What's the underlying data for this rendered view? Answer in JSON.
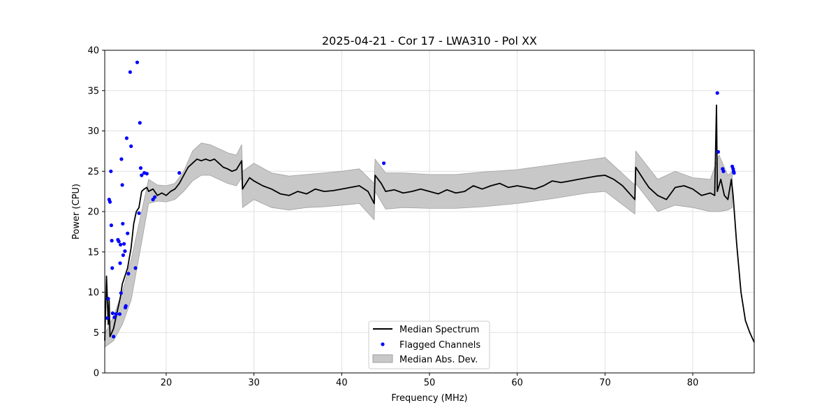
{
  "chart_data": {
    "type": "line",
    "title": "2025-04-21 - Cor 17 - LWA310 - Pol XX",
    "xlabel": "Frequency (MHz)",
    "ylabel": "Power (CPU)",
    "xlim": [
      13,
      87
    ],
    "ylim": [
      0,
      40
    ],
    "xticks": [
      20,
      30,
      40,
      50,
      60,
      70,
      80
    ],
    "yticks": [
      0,
      5,
      10,
      15,
      20,
      25,
      30,
      35,
      40
    ],
    "grid": true,
    "legend_position": "bottom-center",
    "legend": [
      "Median Spectrum",
      "Flagged Channels",
      "Median Abs. Dev."
    ],
    "colors": {
      "median": "#000000",
      "flagged": "#0000ff",
      "mad_fill": "#c8c8c8",
      "mad_edge": "#a0a0a0",
      "grid": "#e0e0e0"
    },
    "series": [
      {
        "name": "Median Spectrum",
        "x": [
          13.0,
          13.2,
          13.4,
          13.5,
          13.6,
          13.8,
          14.0,
          14.2,
          14.5,
          14.8,
          15.0,
          15.3,
          15.6,
          16.0,
          16.3,
          16.6,
          16.9,
          17.2,
          17.5,
          17.8,
          18.0,
          18.5,
          19.0,
          19.5,
          20.0,
          20.5,
          21.0,
          21.5,
          22.0,
          22.5,
          23.0,
          23.5,
          24.0,
          24.5,
          25.0,
          25.5,
          26.0,
          26.5,
          27.0,
          27.5,
          28.0,
          28.6,
          28.7,
          29.5,
          30.0,
          31.0,
          32.0,
          33.0,
          34.0,
          35.0,
          36.0,
          37.0,
          38.0,
          39.0,
          40.0,
          41.0,
          42.0,
          43.0,
          43.7,
          43.8,
          44.5,
          45.0,
          46.0,
          47.0,
          48.0,
          49.0,
          50.0,
          51.0,
          52.0,
          53.0,
          54.0,
          55.0,
          56.0,
          57.0,
          58.0,
          59.0,
          60.0,
          61.0,
          62.0,
          63.0,
          64.0,
          65.0,
          66.0,
          67.0,
          68.0,
          69.0,
          70.0,
          71.0,
          72.0,
          73.4,
          73.5,
          74.5,
          75.0,
          76.0,
          77.0,
          78.0,
          79.0,
          80.0,
          81.0,
          82.0,
          82.5,
          82.7,
          82.8,
          83.2,
          83.6,
          84.0,
          84.4,
          84.6,
          85.0,
          85.5,
          86.0,
          86.5,
          87.0
        ],
        "values": [
          4.0,
          12.0,
          6.0,
          9.0,
          4.5,
          5.0,
          5.5,
          6.5,
          8.0,
          9.5,
          11.0,
          12.0,
          13.0,
          15.5,
          18.5,
          20.0,
          20.5,
          22.5,
          22.8,
          23.0,
          22.5,
          22.8,
          22.0,
          22.3,
          22.0,
          22.5,
          22.8,
          23.5,
          24.5,
          25.5,
          26.0,
          26.5,
          26.3,
          26.5,
          26.3,
          26.5,
          26.0,
          25.5,
          25.3,
          25.0,
          25.2,
          26.3,
          22.8,
          24.2,
          23.8,
          23.2,
          22.8,
          22.2,
          22.0,
          22.5,
          22.2,
          22.8,
          22.5,
          22.6,
          22.8,
          23.0,
          23.2,
          22.5,
          21.0,
          24.5,
          23.5,
          22.5,
          22.7,
          22.3,
          22.5,
          22.8,
          22.5,
          22.2,
          22.7,
          22.3,
          22.5,
          23.2,
          22.8,
          23.2,
          23.5,
          23.0,
          23.2,
          23.0,
          22.8,
          23.2,
          23.8,
          23.6,
          23.8,
          24.0,
          24.2,
          24.4,
          24.5,
          24.0,
          23.2,
          21.5,
          25.5,
          23.8,
          23.0,
          22.0,
          21.5,
          23.0,
          23.2,
          22.8,
          22.0,
          22.3,
          22.0,
          33.2,
          22.5,
          24.0,
          22.0,
          21.5,
          24.0,
          22.0,
          16.0,
          10.0,
          6.5,
          5.0,
          3.8
        ]
      },
      {
        "name": "Flagged Channels",
        "x": [
          13.3,
          13.4,
          13.5,
          13.6,
          13.7,
          13.75,
          13.8,
          13.85,
          13.9,
          14.0,
          14.1,
          14.3,
          14.5,
          14.6,
          14.7,
          14.75,
          14.8,
          14.85,
          14.9,
          15.0,
          15.05,
          15.1,
          15.2,
          15.3,
          15.35,
          15.4,
          15.5,
          15.6,
          15.7,
          15.9,
          16.0,
          16.5,
          16.7,
          16.9,
          17.0,
          17.1,
          17.2,
          17.5,
          17.8,
          18.5,
          18.7,
          21.5,
          44.8,
          82.8,
          82.9,
          83.4,
          83.5,
          84.5,
          84.6,
          84.65,
          84.7
        ],
        "values": [
          6.8,
          9.2,
          21.5,
          21.2,
          25.0,
          18.3,
          16.4,
          13.0,
          7.4,
          4.5,
          6.9,
          7.3,
          16.5,
          16.3,
          7.3,
          13.6,
          15.9,
          9.9,
          26.5,
          23.3,
          18.5,
          14.6,
          16.0,
          15.1,
          8.1,
          8.3,
          29.1,
          17.3,
          12.3,
          37.3,
          28.1,
          13.0,
          38.5,
          19.8,
          31.0,
          25.4,
          24.5,
          24.8,
          24.7,
          21.5,
          21.8,
          24.8,
          26.0,
          34.7,
          27.4,
          25.3,
          25.0,
          25.6,
          25.3,
          25.0,
          24.8
        ]
      },
      {
        "name": "Median Abs. Dev.",
        "x": [
          13.0,
          14.0,
          15.0,
          16.0,
          17.0,
          18.0,
          19.0,
          20.0,
          21.0,
          22.0,
          23.0,
          24.0,
          25.0,
          26.0,
          27.0,
          28.0,
          28.6,
          28.7,
          30.0,
          32.0,
          34.0,
          36.0,
          38.0,
          40.0,
          42.0,
          43.7,
          43.8,
          45.0,
          47.0,
          50.0,
          53.0,
          56.0,
          60.0,
          64.0,
          68.0,
          70.0,
          73.4,
          73.5,
          76.0,
          78.0,
          80.0,
          82.0,
          83.0,
          84.0,
          84.5
        ],
        "lower": [
          3.2,
          4.0,
          6.0,
          9.0,
          15.0,
          21.0,
          21.3,
          21.2,
          21.5,
          22.5,
          23.8,
          24.5,
          24.5,
          24.0,
          23.5,
          23.2,
          24.2,
          20.5,
          21.5,
          20.5,
          20.2,
          20.5,
          20.6,
          20.8,
          21.0,
          19.0,
          22.5,
          20.3,
          20.5,
          20.4,
          20.4,
          20.6,
          21.0,
          21.6,
          22.3,
          22.5,
          19.7,
          23.5,
          20.0,
          20.8,
          20.5,
          20.0,
          20.0,
          20.2,
          20.5
        ],
        "upper": [
          4.8,
          7.0,
          10.0,
          14.0,
          19.0,
          24.0,
          23.3,
          23.2,
          23.5,
          25.0,
          27.5,
          28.5,
          28.3,
          27.8,
          27.3,
          27.0,
          28.3,
          25.0,
          26.0,
          24.8,
          24.4,
          24.6,
          24.8,
          25.0,
          25.3,
          23.5,
          26.5,
          24.8,
          24.8,
          24.6,
          24.6,
          24.9,
          25.2,
          25.8,
          26.4,
          26.7,
          23.3,
          27.5,
          24.0,
          25.0,
          24.2,
          24.0,
          27.0,
          24.5,
          25.0
        ]
      }
    ]
  }
}
